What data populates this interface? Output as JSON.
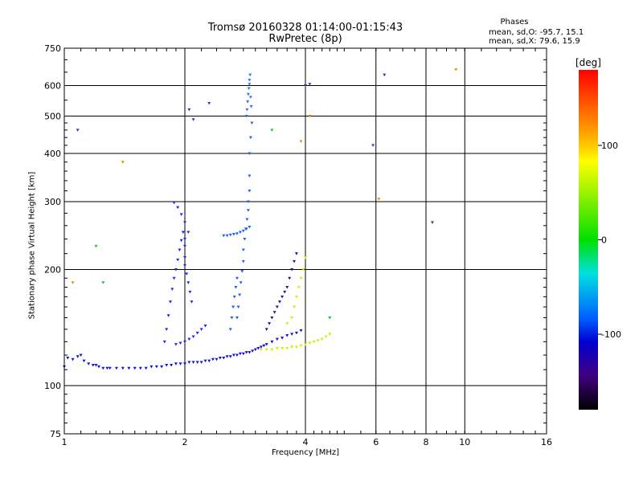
{
  "header": {
    "title": "Tromsø 20160328 01:14:00-01:15:43",
    "subtitle": "RwPretec (8p)"
  },
  "phases": {
    "heading": "Phases",
    "o_line": "mean, sd,O: -95.7, 15.1",
    "x_line": "mean, sd,X:  79.6, 15.9"
  },
  "colorbar": {
    "unit": "[deg]",
    "ticks": [
      "100",
      "0",
      "-100"
    ],
    "tick_values": [
      100,
      0,
      -100
    ],
    "range": [
      -180,
      180
    ],
    "colors": [
      "#ff0000",
      "#ffbf00",
      "#ffff00",
      "#00e000",
      "#00e0e0",
      "#0060ff",
      "#0000d0",
      "#400080",
      "#000000"
    ]
  },
  "chart_data": {
    "type": "scatter",
    "xlabel": "Frequency [MHz]",
    "ylabel": "Stationary phase Virtual Height [km]",
    "xscale": "log",
    "yscale": "log",
    "xlim": [
      1,
      16
    ],
    "ylim": [
      75,
      750
    ],
    "xticks": [
      1,
      2,
      4,
      6,
      8,
      10,
      16
    ],
    "xtick_labels": [
      "1",
      "2",
      "4",
      "6",
      "8",
      "10",
      "16"
    ],
    "yticks": [
      75,
      100,
      200,
      300,
      400,
      500,
      600,
      750
    ],
    "ytick_labels": [
      "75",
      "100",
      "200",
      "300",
      "400",
      "500",
      "600",
      "750"
    ],
    "grid": true,
    "series": [
      {
        "mode": "O",
        "color": "#1010e0",
        "x": [
          1.0,
          1.05,
          1.1,
          1.15,
          1.2,
          1.25,
          1.3,
          1.4,
          1.5,
          1.6,
          1.7,
          1.8,
          1.9,
          2.0,
          2.1,
          2.2,
          2.3,
          2.4,
          2.5,
          2.6,
          2.7,
          2.8,
          2.9,
          3.0,
          3.1,
          3.2,
          3.3,
          3.4,
          3.5,
          3.6,
          3.7,
          3.8,
          3.9,
          1.02,
          1.08,
          1.12,
          1.18,
          1.22,
          1.28,
          1.35,
          1.45,
          1.55,
          1.65,
          1.75,
          1.85,
          1.95,
          2.05,
          2.15,
          2.25,
          2.35,
          2.45,
          2.55,
          2.65,
          2.75,
          2.85,
          2.95,
          3.05,
          3.15
        ],
        "y": [
          112,
          117,
          120,
          114,
          113,
          111,
          111,
          111,
          111,
          111,
          112,
          113,
          114,
          114,
          115,
          115,
          116,
          117,
          118,
          119,
          120,
          121,
          122,
          124,
          126,
          128,
          130,
          132,
          133,
          135,
          136,
          137,
          139,
          118,
          119,
          116,
          113,
          112,
          111,
          111,
          111,
          111,
          112,
          112,
          113,
          114,
          115,
          115,
          116,
          117,
          118,
          119,
          120,
          121,
          122,
          123,
          125,
          127
        ]
      },
      {
        "mode": "O",
        "color": "#1a2ae8",
        "x": [
          1.78,
          1.8,
          1.82,
          1.84,
          1.86,
          1.88,
          1.9,
          1.92,
          1.94,
          1.96,
          1.98,
          2.0,
          2.0,
          2.0,
          2.0,
          2.02,
          2.04,
          2.06,
          2.08,
          1.9,
          1.95,
          2.0,
          2.05,
          2.1,
          2.15,
          2.2,
          2.25,
          1.88,
          1.92,
          1.96,
          2.0,
          2.04
        ],
        "y": [
          130,
          140,
          152,
          165,
          178,
          190,
          200,
          212,
          225,
          238,
          250,
          240,
          230,
          215,
          205,
          195,
          185,
          175,
          165,
          128,
          129,
          130,
          132,
          134,
          137,
          140,
          143,
          298,
          290,
          278,
          265,
          250
        ]
      },
      {
        "mode": "O",
        "color": "#2060f0",
        "x": [
          2.7,
          2.72,
          2.74,
          2.76,
          2.78,
          2.8,
          2.8,
          2.82,
          2.84,
          2.86,
          2.88,
          2.88,
          2.9,
          2.9,
          2.9,
          2.92,
          2.94,
          2.6,
          2.62,
          2.64,
          2.66,
          2.68,
          2.7,
          2.5,
          2.55,
          2.6,
          2.65,
          2.7,
          2.75,
          2.8,
          2.85,
          2.9
        ],
        "y": [
          150,
          160,
          172,
          185,
          198,
          210,
          225,
          240,
          255,
          270,
          285,
          300,
          320,
          350,
          400,
          440,
          480,
          140,
          150,
          160,
          170,
          180,
          190,
          245,
          245,
          246,
          247,
          248,
          250,
          252,
          255,
          258
        ]
      },
      {
        "mode": "O",
        "color": "#3070f8",
        "x": [
          2.85,
          2.86,
          2.87,
          2.88,
          2.89,
          2.9,
          2.9,
          2.91,
          2.92,
          2.93
        ],
        "y": [
          500,
          520,
          545,
          570,
          590,
          605,
          620,
          640,
          560,
          530
        ]
      },
      {
        "mode": "O",
        "color": "#301090",
        "x": [
          3.2,
          3.25,
          3.3,
          3.35,
          3.4,
          3.45,
          3.5,
          3.55,
          3.6,
          3.65,
          3.7,
          3.75,
          3.8
        ],
        "y": [
          140,
          145,
          150,
          155,
          160,
          165,
          170,
          175,
          180,
          190,
          200,
          210,
          220
        ]
      },
      {
        "mode": "X",
        "color": "#c8f000",
        "x": [
          3.1,
          3.2,
          3.3,
          3.4,
          3.5,
          3.6,
          3.7,
          3.8,
          3.9,
          4.0,
          4.1,
          4.2,
          4.3,
          4.4,
          4.5,
          4.6,
          3.6,
          3.7,
          3.75,
          3.8,
          3.85,
          3.9,
          3.95,
          4.0
        ],
        "y": [
          124,
          124,
          124,
          125,
          125,
          125,
          126,
          126,
          127,
          128,
          129,
          130,
          131,
          132,
          134,
          136,
          145,
          150,
          160,
          170,
          180,
          190,
          200,
          215
        ]
      },
      {
        "mode": "other",
        "color": "#e09000",
        "x": [
          1.05,
          1.4,
          3.9,
          4.1,
          6.1,
          9.5
        ],
        "y": [
          185,
          380,
          430,
          500,
          305,
          660
        ]
      },
      {
        "mode": "other",
        "color": "#2040c0",
        "x": [
          1.08,
          2.05,
          2.1,
          2.3,
          4.0,
          4.1,
          5.9,
          6.3,
          8.3
        ],
        "y": [
          460,
          520,
          490,
          540,
          600,
          605,
          420,
          640,
          265
        ]
      },
      {
        "mode": "other",
        "color": "#20c040",
        "x": [
          1.2,
          1.25,
          3.3,
          4.6
        ],
        "y": [
          230,
          185,
          460,
          150
        ]
      }
    ]
  }
}
